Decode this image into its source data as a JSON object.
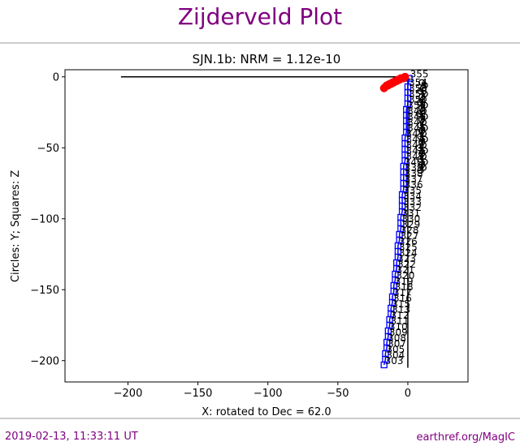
{
  "header": {
    "title": "Zijderveld Plot"
  },
  "footer": {
    "timestamp": "2019-02-13, 11:33:11 UT",
    "source": "earthref.org/MagIC"
  },
  "chart_data": {
    "type": "scatter",
    "title": "SJN.1b: NRM =  1.12e-10",
    "xlabel": "X: rotated to Dec =    62.0",
    "ylabel": "Circles: Y; Squares: Z",
    "xlim": [
      -245,
      43
    ],
    "ylim": [
      5,
      -215
    ],
    "y_inverted": true,
    "xticks": [
      -200,
      -150,
      -100,
      -50,
      0
    ],
    "xtick_labels": [
      "−200",
      "−150",
      "−100",
      "−50",
      "0"
    ],
    "yticks": [
      -200,
      -150,
      -100,
      -50,
      0
    ],
    "ytick_labels": [
      "−200",
      "−150",
      "−100",
      "−50",
      "0"
    ],
    "grid": false,
    "measurement_labels": [
      "303",
      "304",
      "305",
      "307",
      "308",
      "309",
      "310",
      "311",
      "312",
      "313",
      "315",
      "316",
      "317",
      "318",
      "319",
      "320",
      "321",
      "322",
      "323",
      "324",
      "325",
      "326",
      "327",
      "328",
      "329",
      "330",
      "331",
      "332",
      "333",
      "334",
      "335",
      "336",
      "337",
      "338",
      "339",
      "340",
      "341",
      "342",
      "343",
      "344",
      "345",
      "346",
      "347",
      "348",
      "349",
      "350",
      "351",
      "352",
      "353",
      "354",
      "355"
    ],
    "series": [
      {
        "marker": "square",
        "color": "#0000ff",
        "x": [
          -17,
          -16,
          -16,
          -15,
          -15,
          -14,
          -14,
          -13,
          -13,
          -12,
          -12,
          -11,
          -11,
          -10,
          -10,
          -9,
          -9,
          -8,
          -8,
          -7,
          -7,
          -7,
          -6,
          -6,
          -5,
          -5,
          -5,
          -4,
          -4,
          -4,
          -4,
          -3,
          -3,
          -3,
          -3,
          -3,
          -2,
          -2,
          -2,
          -2,
          -2,
          -1,
          -1,
          -1,
          -1,
          -1,
          0,
          0,
          0,
          0,
          1
        ],
        "y": [
          -203,
          -199,
          -195,
          -191,
          -187,
          -183,
          -179,
          -175,
          -171,
          -167,
          -163,
          -159,
          -155,
          -151,
          -147,
          -143,
          -139,
          -135,
          -131,
          -127,
          -123,
          -119,
          -115,
          -111,
          -107,
          -103,
          -99,
          -95,
          -91,
          -87,
          -83,
          -79,
          -75,
          -71,
          -67,
          -63,
          -59,
          -55,
          -51,
          -47,
          -43,
          -39,
          -35,
          -31,
          -27,
          -23,
          -19,
          -15,
          -11,
          -7,
          -1
        ]
      },
      {
        "marker": "circle",
        "color": "#ff0000",
        "x": [
          -17,
          -16,
          -15,
          -14,
          -13,
          -12,
          -11,
          -10,
          -9,
          -8,
          -7,
          -6,
          -5,
          -4,
          -3,
          -2
        ],
        "y": [
          -8,
          -7,
          -6,
          -6,
          -5,
          -5,
          -4,
          -4,
          -3,
          -3,
          -2,
          -2,
          -1,
          -1,
          -1,
          0
        ]
      },
      {
        "marker": "circle",
        "color": "#000000",
        "x": [
          10,
          12,
          11,
          9,
          12,
          10,
          11,
          9,
          12,
          10,
          11,
          8,
          12,
          10,
          11,
          9,
          12,
          10,
          11,
          9,
          12,
          10,
          11,
          8,
          12,
          10,
          11,
          9,
          12,
          10,
          11,
          9
        ],
        "y": [
          -4,
          -6,
          -8,
          -10,
          -12,
          -14,
          -16,
          -18,
          -20,
          -22,
          -24,
          -26,
          -28,
          -30,
          -32,
          -34,
          -36,
          -38,
          -40,
          -42,
          -44,
          -46,
          -48,
          -50,
          -52,
          -54,
          -56,
          -58,
          -60,
          -62,
          -64,
          -66
        ]
      }
    ],
    "lines": [
      {
        "x": [
          -205,
          0
        ],
        "y": [
          0,
          0
        ],
        "color": "#000000"
      },
      {
        "x": [
          0,
          0
        ],
        "y": [
          0,
          -205
        ],
        "color": "#000000"
      }
    ]
  }
}
